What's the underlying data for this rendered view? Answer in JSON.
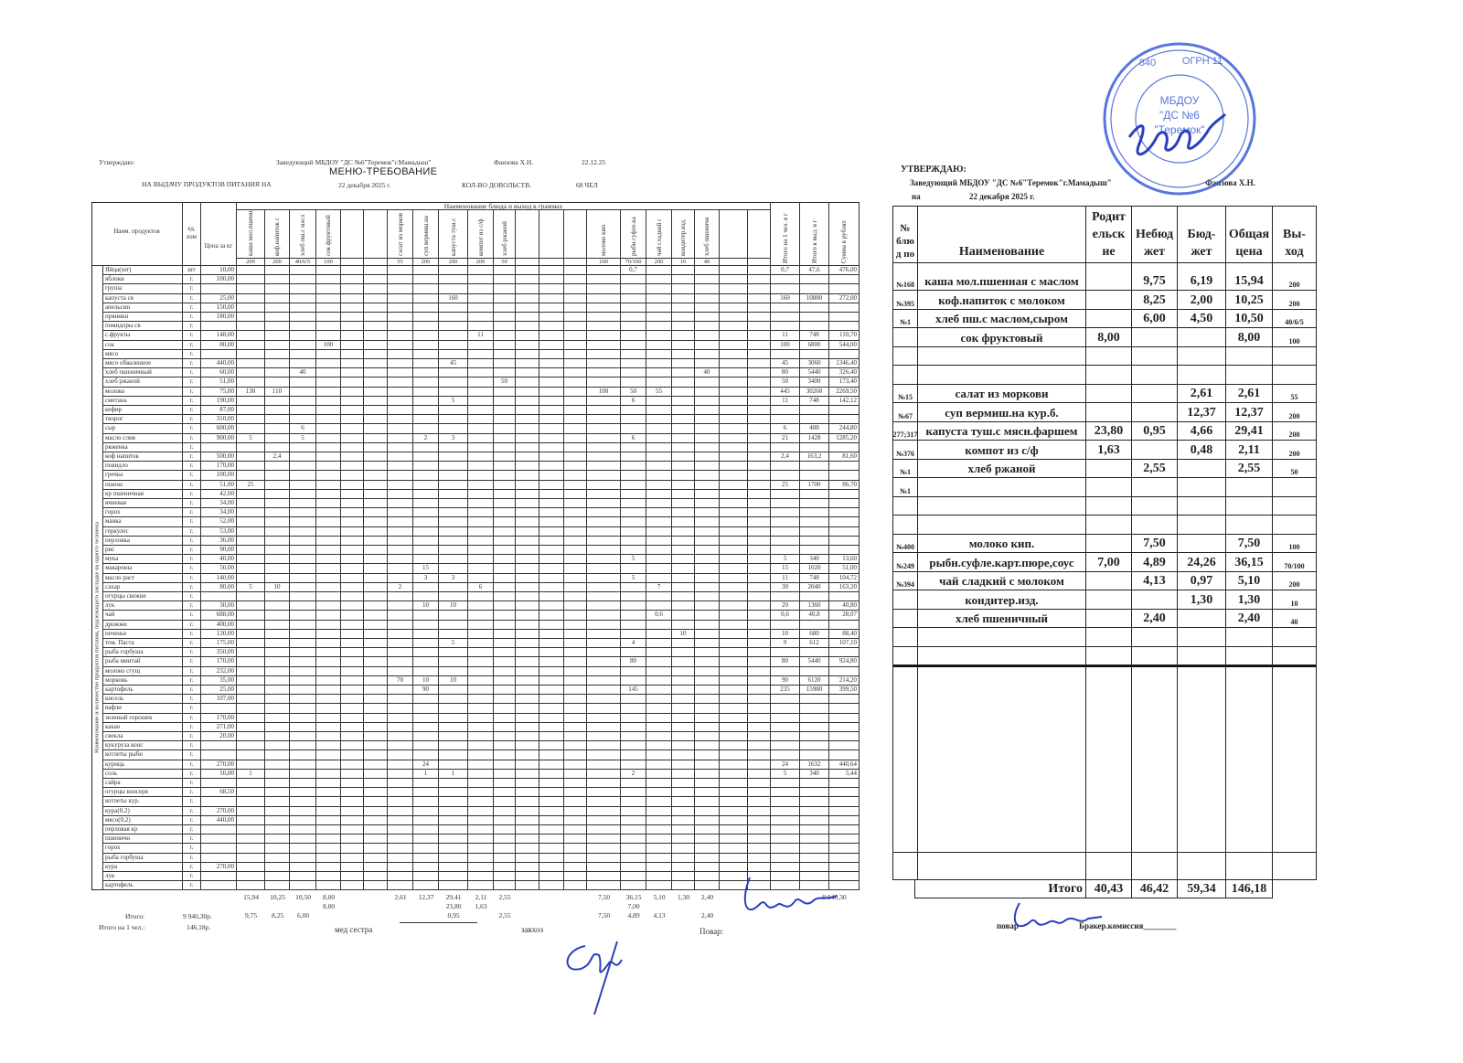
{
  "left": {
    "approve": "Утверждаю:",
    "head_position": "Заведующий МБДОУ \"ДС №6\"Теремок\"г.Мамадыш\"",
    "head_name": "Фаизова Х.Н.",
    "approve_date": "22.12.25",
    "title": "МЕНЮ-ТРЕБОВАНИЕ",
    "subtitle": "НА ВЫДАЧУ ПРОДУКТОВ ПИТАНИЯ НА",
    "date": "22 декабря 2025 г.",
    "count_label": "КОЛ-ВО ДОВОЛЬСТВ.",
    "count_value": "68  ЧЕЛ",
    "col_product": "Наим. продуктов",
    "col_unit": "ед. изм",
    "col_price": "Цена за кг",
    "dishes_header": "Наименование блюда и выход в граммах",
    "side_label": "Наименование и количество продуктов питания, подлежащего закладке на одного человека",
    "dishes": [
      {
        "name": "каша мол.пшенная",
        "yield": "200"
      },
      {
        "name": "коф.напиток с",
        "yield": "200"
      },
      {
        "name": "хлеб пш.с масл",
        "yield": "40/6/5"
      },
      {
        "name": "сок фруктовый",
        "yield": "100"
      },
      {
        "name": "",
        "yield": ""
      },
      {
        "name": "",
        "yield": ""
      },
      {
        "name": "салат из морков",
        "yield": "55"
      },
      {
        "name": "суп вермиш.на",
        "yield": "200"
      },
      {
        "name": "капуста туш.с",
        "yield": "200"
      },
      {
        "name": "компот из с/ф",
        "yield": "200"
      },
      {
        "name": "хлеб ржаной",
        "yield": "50"
      },
      {
        "name": "",
        "yield": ""
      },
      {
        "name": "",
        "yield": ""
      },
      {
        "name": "",
        "yield": ""
      },
      {
        "name": "молоко кип.",
        "yield": "100"
      },
      {
        "name": "рыбн.суфле.ка",
        "yield": "70/100"
      },
      {
        "name": "чай сладкий с",
        "yield": "200"
      },
      {
        "name": "кондитер.изд.",
        "yield": "10"
      },
      {
        "name": "хлеб пшеничн",
        "yield": "40"
      },
      {
        "name": "",
        "yield": ""
      },
      {
        "name": "",
        "yield": ""
      }
    ],
    "summary_cols": [
      "Итого на 1 чел. в г",
      "Итого к выд. в г",
      "Сумма в рублях"
    ],
    "products": [
      {
        "name": "Яйца(шт)",
        "unit": "шт",
        "price": "10,00",
        "cells": {
          "15": "0,7"
        },
        "per_person": "0,7",
        "total": "47,6",
        "sum": "476,00"
      },
      {
        "name": "яблоки",
        "unit": "г.",
        "price": "100,00",
        "cells": {}
      },
      {
        "name": "груша",
        "unit": "г.",
        "price": "",
        "cells": {}
      },
      {
        "name": "капуста св",
        "unit": "г.",
        "price": "25,00",
        "cells": {
          "8": "160"
        },
        "per_person": "160",
        "total": "10880",
        "sum": "272,00"
      },
      {
        "name": "апельсин",
        "unit": "г.",
        "price": "150,00",
        "cells": {}
      },
      {
        "name": "пряники",
        "unit": "г.",
        "price": "180,00",
        "cells": {}
      },
      {
        "name": "помидоры св",
        "unit": "г.",
        "price": "",
        "cells": {}
      },
      {
        "name": "с.фрукты",
        "unit": "г.",
        "price": "148,00",
        "cells": {
          "9": "11"
        },
        "per_person": "11",
        "total": "748",
        "sum": "110,70"
      },
      {
        "name": "сок",
        "unit": "г.",
        "price": "80,00",
        "cells": {
          "3": "100"
        },
        "per_person": "100",
        "total": "6800",
        "sum": "544,00"
      },
      {
        "name": "мясо",
        "unit": "г.",
        "price": "",
        "cells": {}
      },
      {
        "name": "мясо обваленное",
        "unit": "г.",
        "price": "440,00",
        "cells": {
          "8": "45"
        },
        "per_person": "45",
        "total": "3060",
        "sum": "1346,40"
      },
      {
        "name": "хлеб пшеничный",
        "unit": "г.",
        "price": "60,00",
        "cells": {
          "2": "40",
          "18": "40"
        },
        "per_person": "80",
        "total": "5440",
        "sum": "326,40"
      },
      {
        "name": "хлеб ржаной",
        "unit": "г.",
        "price": "51,00",
        "cells": {
          "10": "50"
        },
        "per_person": "50",
        "total": "3400",
        "sum": "173,40"
      },
      {
        "name": "молоко",
        "unit": "г.",
        "price": "75,00",
        "cells": {
          "0": "130",
          "1": "110",
          "14": "100",
          "15": "50",
          "16": "55"
        },
        "per_person": "445",
        "total": "30260",
        "sum": "2269,50"
      },
      {
        "name": "сметана",
        "unit": "г.",
        "price": "190,00",
        "cells": {
          "8": "5",
          "15": "6"
        },
        "per_person": "11",
        "total": "748",
        "sum": "142,12"
      },
      {
        "name": "кефир",
        "unit": "г.",
        "price": "87,00",
        "cells": {}
      },
      {
        "name": "творог",
        "unit": "г.",
        "price": "310,00",
        "cells": {}
      },
      {
        "name": "сыр",
        "unit": "г.",
        "price": "600,00",
        "cells": {
          "2": "6"
        },
        "per_person": "6",
        "total": "408",
        "sum": "244,80"
      },
      {
        "name": "масло слив",
        "unit": "г.",
        "price": "900,00",
        "cells": {
          "0": "5",
          "2": "5",
          "7": "2",
          "8": "3",
          "15": "6"
        },
        "per_person": "21",
        "total": "1428",
        "sum": "1285,20"
      },
      {
        "name": "ряженка",
        "unit": "г.",
        "price": "",
        "cells": {}
      },
      {
        "name": "коф напиток",
        "unit": "г.",
        "price": "500,00",
        "cells": {
          "1": "2,4"
        },
        "per_person": "2,4",
        "total": "163,2",
        "sum": "81,60"
      },
      {
        "name": "повидло",
        "unit": "г.",
        "price": "170,00",
        "cells": {}
      },
      {
        "name": "гречка",
        "unit": "г.",
        "price": "100,00",
        "cells": {}
      },
      {
        "name": "пшено",
        "unit": "г.",
        "price": "51,00",
        "cells": {
          "0": "25"
        },
        "per_person": "25",
        "total": "1700",
        "sum": "86,70"
      },
      {
        "name": " кр пшеничная",
        "unit": "г.",
        "price": "42,00",
        "cells": {}
      },
      {
        "name": "ячневая",
        "unit": "г.",
        "price": "34,00",
        "cells": {}
      },
      {
        "name": "горох",
        "unit": "г.",
        "price": "34,00",
        "cells": {}
      },
      {
        "name": "манка",
        "unit": "г.",
        "price": "52,00",
        "cells": {}
      },
      {
        "name": "геркулес",
        "unit": "г.",
        "price": "53,00",
        "cells": {}
      },
      {
        "name": "перловка",
        "unit": "г.",
        "price": "36,00",
        "cells": {}
      },
      {
        "name": "рис",
        "unit": "г.",
        "price": "90,00",
        "cells": {}
      },
      {
        "name": "мука",
        "unit": "г.",
        "price": "40,00",
        "cells": {
          "15": "5"
        },
        "per_person": "5",
        "total": "340",
        "sum": "13,60"
      },
      {
        "name": "макароны",
        "unit": "г.",
        "price": "50,00",
        "cells": {
          "7": "15"
        },
        "per_person": "15",
        "total": "1020",
        "sum": "51,00"
      },
      {
        "name": "масло раст",
        "unit": "г.",
        "price": "140,00",
        "cells": {
          "7": "3",
          "8": "3",
          "15": "5"
        },
        "per_person": "11",
        "total": "748",
        "sum": "104,72"
      },
      {
        "name": "сахар",
        "unit": "г.",
        "price": "80,00",
        "cells": {
          "0": "5",
          "1": "10",
          "6": "2",
          "9": "6",
          "16": "7"
        },
        "per_person": "30",
        "total": "2040",
        "sum": "163,20"
      },
      {
        "name": "огурцы свежие",
        "unit": "г.",
        "price": "",
        "cells": {}
      },
      {
        "name": "лук",
        "unit": "г.",
        "price": "30,00",
        "cells": {
          "7": "10",
          "8": "10"
        },
        "per_person": "20",
        "total": "1360",
        "sum": "40,80"
      },
      {
        "name": "чай",
        "unit": "г.",
        "price": "688,00",
        "cells": {
          "16": "0,6"
        },
        "per_person": "0,6",
        "total": "40,8",
        "sum": "28,07"
      },
      {
        "name": "дрожжи",
        "unit": "г.",
        "price": "400,00",
        "cells": {}
      },
      {
        "name": "печенье",
        "unit": "г.",
        "price": "130,00",
        "cells": {
          "17": "10"
        },
        "per_person": "10",
        "total": "680",
        "sum": "88,40"
      },
      {
        "name": "том. Паста",
        "unit": "г.",
        "price": "175,00",
        "cells": {
          "8": "5",
          "15": "4"
        },
        "per_person": "9",
        "total": "612",
        "sum": "107,10"
      },
      {
        "name": "рыба горбуша",
        "unit": "г.",
        "price": "350,00",
        "cells": {}
      },
      {
        "name": "рыба минтай",
        "unit": "г.",
        "price": "170,00",
        "cells": {
          "15": "80"
        },
        "per_person": "80",
        "total": "5440",
        "sum": "924,80"
      },
      {
        "name": "молоко сгущ",
        "unit": "г.",
        "price": "232,00",
        "cells": {}
      },
      {
        "name": "морковь",
        "unit": "г.",
        "price": "35,00",
        "cells": {
          "6": "70",
          "7": "10",
          "8": "10"
        },
        "per_person": "90",
        "total": "6120",
        "sum": "214,20"
      },
      {
        "name": "картофель",
        "unit": "г.",
        "price": "25,00",
        "cells": {
          "7": "90",
          "15": "145"
        },
        "per_person": "235",
        "total": "15980",
        "sum": "399,50"
      },
      {
        "name": "кисель",
        "unit": "г.",
        "price": "107,00",
        "cells": {}
      },
      {
        "name": "вафли",
        "unit": "г.",
        "price": "",
        "cells": {}
      },
      {
        "name": "зеленый горошек",
        "unit": "г.",
        "price": "170,00",
        "cells": {}
      },
      {
        "name": "какао",
        "unit": "г.",
        "price": "271,00",
        "cells": {}
      },
      {
        "name": "свекла",
        "unit": "г.",
        "price": "20,00",
        "cells": {}
      },
      {
        "name": "кукуруза конс",
        "unit": "г.",
        "price": "",
        "cells": {}
      },
      {
        "name": "котлеты рыбн",
        "unit": "г.",
        "price": "",
        "cells": {}
      },
      {
        "name": "курица",
        "unit": "г.",
        "price": "270,00",
        "cells": {
          "7": "24"
        },
        "per_person": "24",
        "total": "1632",
        "sum": "440,64"
      },
      {
        "name": "соль",
        "unit": "г.",
        "price": "16,00",
        "cells": {
          "0": "1",
          "7": "1",
          "8": "1",
          "15": "2"
        },
        "per_person": "5",
        "total": "340",
        "sum": "5,44"
      },
      {
        "name": "сайра",
        "unit": "г.",
        "price": "",
        "cells": {}
      },
      {
        "name": "огурцы консерв",
        "unit": "г.",
        "price": "68,50",
        "cells": {}
      },
      {
        "name": "котлеты кур.",
        "unit": "г.",
        "price": "",
        "cells": {}
      },
      {
        "name": "кура(0,2)",
        "unit": "г.",
        "price": "270,00",
        "cells": {}
      },
      {
        "name": "мясо(0,2)",
        "unit": "г.",
        "price": "440,00",
        "cells": {}
      },
      {
        "name": "перловая кр",
        "unit": "г.",
        "price": "",
        "cells": {}
      },
      {
        "name": "пшеничн",
        "unit": "г.",
        "price": "",
        "cells": {}
      },
      {
        "name": "горох",
        "unit": "г.",
        "price": "",
        "cells": {}
      },
      {
        "name": "рыба горбуша",
        "unit": "г.",
        "price": "",
        "cells": {}
      },
      {
        "name": "кура",
        "unit": "г.",
        "price": "270,00",
        "cells": {}
      },
      {
        "name": "лук",
        "unit": "г.",
        "price": "",
        "cells": {}
      },
      {
        "name": "картофель",
        "unit": "г.",
        "price": "",
        "cells": {}
      }
    ],
    "totals_lines": [
      [
        "15,94",
        "10,25",
        "10,50",
        "8,00",
        "",
        "",
        "2,61",
        "12,37",
        "29,41",
        "2,11",
        "2,55",
        "",
        "",
        "",
        "7,50",
        "36,15",
        "5,10",
        "1,30",
        "2,40",
        "",
        ""
      ],
      [
        "",
        "",
        "",
        "8,00",
        "",
        "",
        "",
        "",
        "23,80",
        "1,63",
        "",
        "",
        "",
        "",
        "",
        "7,00",
        "",
        "",
        "",
        "",
        ""
      ],
      [
        "9,75",
        "8,25",
        "6,00",
        "",
        "",
        "",
        "",
        "",
        "0,95",
        "",
        "2,55",
        "",
        "",
        "",
        "7,50",
        "4,89",
        "4,13",
        "",
        "2,40",
        "",
        ""
      ]
    ],
    "grand_total_right": "9 940,30",
    "total_label": "Итого:",
    "total_value": "9 940,30р.",
    "per_person_label": "Итого на 1 чел.:",
    "per_person_value": "146,18р.",
    "nurse_label": "мед сестра",
    "storekeeper_label": "завхоз",
    "cook_label": "Повар:"
  },
  "right": {
    "approve": "УТВЕРЖДАЮ:",
    "head_position": "Заведующий МБДОУ \"ДС №6\"Теремок\"г.Мамадыш\"",
    "head_name": "Фаизова Х.Н.",
    "on_label": "на",
    "date": "22 декабря 2025 г.",
    "headers": {
      "no": "№ блю д по",
      "name": "Наименование",
      "parent": "Родит ельск ие",
      "nonbudget": "Небюд жет",
      "budget": "Бюд- жет",
      "total": "Общая цена",
      "yield": "Вы- ход"
    },
    "rows": [
      {
        "no": "№168",
        "name": "каша мол.пшенная с маслом",
        "parent": "",
        "nonbudget": "9,75",
        "budget": "6,19",
        "total": "15,94",
        "yield": "200"
      },
      {
        "no": "№395",
        "name": "коф.напиток с молоком",
        "parent": "",
        "nonbudget": "8,25",
        "budget": "2,00",
        "total": "10,25",
        "yield": "200"
      },
      {
        "no": "№1",
        "name": "хлеб пш.с маслом,сыром",
        "parent": "",
        "nonbudget": "6,00",
        "budget": "4,50",
        "total": "10,50",
        "yield": "40/6/5"
      },
      {
        "no": "",
        "name": "сок фруктовый",
        "parent": "8,00",
        "nonbudget": "",
        "budget": "",
        "total": "8,00",
        "yield": "100"
      },
      {
        "no": "",
        "name": "",
        "parent": "",
        "nonbudget": "",
        "budget": "",
        "total": "",
        "yield": ""
      },
      {
        "no": "",
        "name": "",
        "parent": "",
        "nonbudget": "",
        "budget": "",
        "total": "",
        "yield": ""
      },
      {
        "no": "№15",
        "name": "салат из моркови",
        "parent": "",
        "nonbudget": "",
        "budget": "2,61",
        "total": "2,61",
        "yield": "55"
      },
      {
        "no": "№67",
        "name": "суп вермиш.на кур.б.",
        "parent": "",
        "nonbudget": "",
        "budget": "12,37",
        "total": "12,37",
        "yield": "200"
      },
      {
        "no": "277;317",
        "name": "капуста туш.с мясн.фаршем",
        "parent": "23,80",
        "nonbudget": "0,95",
        "budget": "4,66",
        "total": "29,41",
        "yield": "200"
      },
      {
        "no": "№376",
        "name": "компот из с/ф",
        "parent": "1,63",
        "nonbudget": "",
        "budget": "0,48",
        "total": "2,11",
        "yield": "200"
      },
      {
        "no": "№1",
        "name": "хлеб ржаной",
        "parent": "",
        "nonbudget": "2,55",
        "budget": "",
        "total": "2,55",
        "yield": "50"
      },
      {
        "no": "№1",
        "name": "",
        "parent": "",
        "nonbudget": "",
        "budget": "",
        "total": "",
        "yield": ""
      },
      {
        "no": "",
        "name": "",
        "parent": "",
        "nonbudget": "",
        "budget": "",
        "total": "",
        "yield": ""
      },
      {
        "no": "",
        "name": "",
        "parent": "",
        "nonbudget": "",
        "budget": "",
        "total": "",
        "yield": ""
      },
      {
        "no": "№400",
        "name": "молоко кип.",
        "parent": "",
        "nonbudget": "7,50",
        "budget": "",
        "total": "7,50",
        "yield": "100"
      },
      {
        "no": "№249",
        "name": "рыбн.суфле.карт.пюре,соус",
        "parent": "7,00",
        "nonbudget": "4,89",
        "budget": "24,26",
        "total": "36,15",
        "yield": "70/100"
      },
      {
        "no": "№394",
        "name": "чай сладкий с молоком",
        "parent": "",
        "nonbudget": "4,13",
        "budget": "0,97",
        "total": "5,10",
        "yield": "200"
      },
      {
        "no": "",
        "name": "кондитер.изд.",
        "parent": "",
        "nonbudget": "",
        "budget": "1,30",
        "total": "1,30",
        "yield": "10"
      },
      {
        "no": "",
        "name": "хлеб пшеничный",
        "parent": "",
        "nonbudget": "2,40",
        "budget": "",
        "total": "2,40",
        "yield": "40"
      },
      {
        "no": "",
        "name": "",
        "parent": "",
        "nonbudget": "",
        "budget": "",
        "total": "",
        "yield": ""
      },
      {
        "no": "",
        "name": "",
        "parent": "",
        "nonbudget": "",
        "budget": "",
        "total": "",
        "yield": ""
      }
    ],
    "totals": {
      "label": "Итого",
      "parent": "40,43",
      "nonbudget": "46,42",
      "budget": "59,34",
      "total": "146,18"
    },
    "cook_label": "повар",
    "commission_label": "Бракер.комиссия________"
  },
  "stamp": {
    "lines": [
      "МБДОУ",
      "\"ДС №6",
      "\"Теремок\"",
      "ОГРН 11",
      "840"
    ],
    "color": "#3b5fd6"
  },
  "ink_color": "#2a3fc0"
}
